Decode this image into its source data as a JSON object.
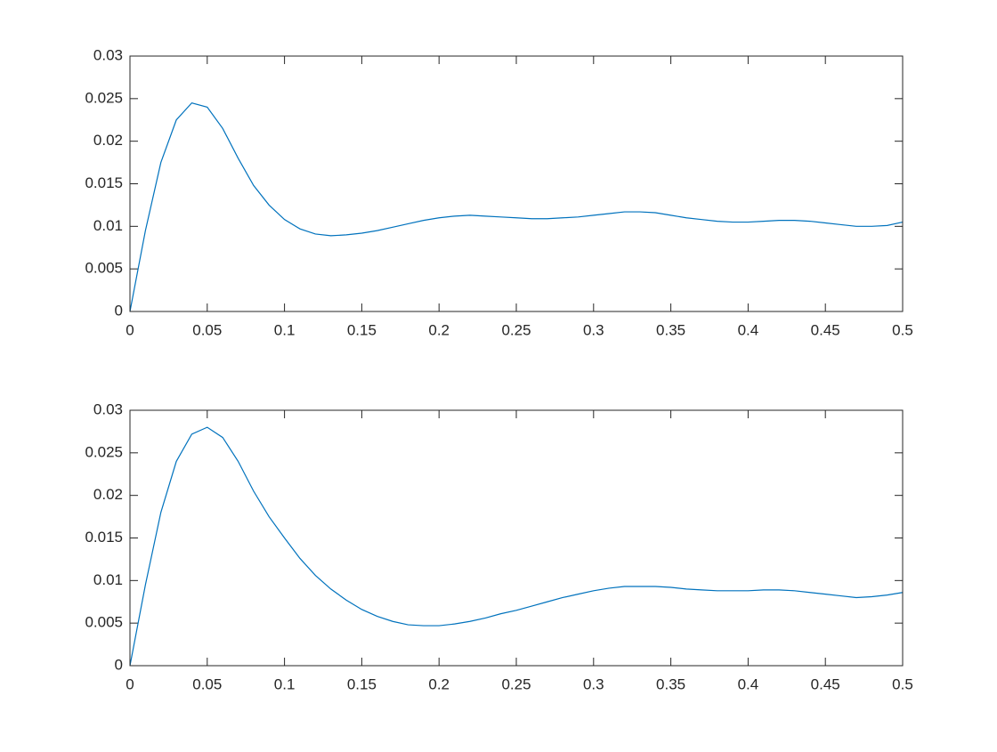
{
  "chart_data": [
    {
      "type": "line",
      "x": [
        0,
        0.01,
        0.02,
        0.03,
        0.04,
        0.05,
        0.06,
        0.07,
        0.08,
        0.09,
        0.1,
        0.11,
        0.12,
        0.13,
        0.14,
        0.15,
        0.16,
        0.17,
        0.18,
        0.19,
        0.2,
        0.21,
        0.22,
        0.23,
        0.24,
        0.25,
        0.26,
        0.27,
        0.28,
        0.29,
        0.3,
        0.31,
        0.32,
        0.33,
        0.34,
        0.35,
        0.36,
        0.37,
        0.38,
        0.39,
        0.4,
        0.41,
        0.42,
        0.43,
        0.44,
        0.45,
        0.46,
        0.47,
        0.48,
        0.49,
        0.5
      ],
      "series": [
        {
          "color": "#0072bd",
          "values": [
            0,
            0.0095,
            0.0175,
            0.0225,
            0.0245,
            0.024,
            0.0215,
            0.018,
            0.0148,
            0.0125,
            0.0108,
            0.0097,
            0.0091,
            0.0089,
            0.009,
            0.0092,
            0.0095,
            0.0099,
            0.0103,
            0.0107,
            0.011,
            0.0112,
            0.0113,
            0.0112,
            0.0111,
            0.011,
            0.0109,
            0.0109,
            0.011,
            0.0111,
            0.0113,
            0.0115,
            0.0117,
            0.0117,
            0.0116,
            0.0113,
            0.011,
            0.0108,
            0.0106,
            0.0105,
            0.0105,
            0.0106,
            0.0107,
            0.0107,
            0.0106,
            0.0104,
            0.0102,
            0.01,
            0.01,
            0.0101,
            0.0105
          ]
        }
      ],
      "xlim": [
        0,
        0.5
      ],
      "ylim": [
        0,
        0.03
      ],
      "xticks": [
        0,
        0.05,
        0.1,
        0.15,
        0.2,
        0.25,
        0.3,
        0.35,
        0.4,
        0.45,
        0.5
      ],
      "yticks": [
        0,
        0.005,
        0.01,
        0.015,
        0.02,
        0.025,
        0.03
      ]
    },
    {
      "type": "line",
      "x": [
        0,
        0.01,
        0.02,
        0.03,
        0.04,
        0.05,
        0.06,
        0.07,
        0.08,
        0.09,
        0.1,
        0.11,
        0.12,
        0.13,
        0.14,
        0.15,
        0.16,
        0.17,
        0.18,
        0.19,
        0.2,
        0.21,
        0.22,
        0.23,
        0.24,
        0.25,
        0.26,
        0.27,
        0.28,
        0.29,
        0.3,
        0.31,
        0.32,
        0.33,
        0.34,
        0.35,
        0.36,
        0.37,
        0.38,
        0.39,
        0.4,
        0.41,
        0.42,
        0.43,
        0.44,
        0.45,
        0.46,
        0.47,
        0.48,
        0.49,
        0.5
      ],
      "series": [
        {
          "color": "#0072bd",
          "values": [
            0,
            0.0095,
            0.018,
            0.024,
            0.0272,
            0.028,
            0.0268,
            0.024,
            0.0205,
            0.0175,
            0.015,
            0.0126,
            0.0106,
            0.009,
            0.0077,
            0.0066,
            0.0058,
            0.0052,
            0.0048,
            0.0047,
            0.0047,
            0.0049,
            0.0052,
            0.0056,
            0.0061,
            0.0065,
            0.007,
            0.0075,
            0.008,
            0.0084,
            0.0088,
            0.0091,
            0.0093,
            0.0093,
            0.0093,
            0.0092,
            0.009,
            0.0089,
            0.0088,
            0.0088,
            0.0088,
            0.0089,
            0.0089,
            0.0088,
            0.0086,
            0.0084,
            0.0082,
            0.008,
            0.0081,
            0.0083,
            0.0086
          ]
        }
      ],
      "xlim": [
        0,
        0.5
      ],
      "ylim": [
        0,
        0.03
      ],
      "xticks": [
        0,
        0.05,
        0.1,
        0.15,
        0.2,
        0.25,
        0.3,
        0.35,
        0.4,
        0.45,
        0.5
      ],
      "yticks": [
        0,
        0.005,
        0.01,
        0.015,
        0.02,
        0.025,
        0.03
      ]
    }
  ]
}
